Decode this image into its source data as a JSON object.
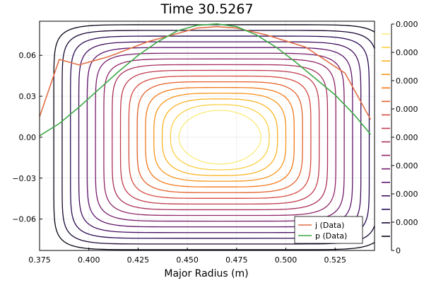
{
  "chart_data": {
    "type": "contour",
    "title": "Time 30.5267",
    "xlabel": "Major Radius (m)",
    "ylabel": "",
    "xlim": [
      0.375,
      0.545
    ],
    "ylim": [
      -0.083,
      0.085
    ],
    "x_ticks": [
      0.375,
      0.4,
      0.425,
      0.45,
      0.475,
      0.5,
      0.525
    ],
    "x_tick_labels": [
      "0.375",
      "0.400",
      "0.425",
      "0.450",
      "0.475",
      "0.500",
      "0.525"
    ],
    "y_ticks": [
      -0.06,
      -0.03,
      0.0,
      0.03,
      0.06
    ],
    "y_tick_labels": [
      "−0.06",
      "−0.03",
      "0.00",
      "0.03",
      "0.06"
    ],
    "grid": true,
    "legend_position": "bottom-right",
    "contours": {
      "center": [
        0.4665,
        0.0
      ],
      "count": 16,
      "colormap": [
        "#000004",
        "#280b54",
        "#65156e",
        "#9f2a63",
        "#d44842",
        "#f57d15",
        "#fac228",
        "#fcffa4"
      ]
    },
    "colorbar": {
      "tick_labels": [
        "0.000",
        "0.000",
        "0.000",
        "0.000",
        "0.000",
        "0.000",
        "0.000",
        "0.000",
        "0"
      ],
      "levels": 16
    },
    "series": [
      {
        "name": "j (Data)",
        "color": "#e26f46",
        "x": [
          0.375,
          0.385,
          0.395,
          0.41,
          0.43,
          0.445,
          0.455,
          0.465,
          0.475,
          0.49,
          0.51,
          0.53,
          0.543
        ],
        "y": [
          0.015,
          0.057,
          0.053,
          0.059,
          0.07,
          0.076,
          0.08,
          0.081,
          0.08,
          0.075,
          0.066,
          0.047,
          0.013
        ]
      },
      {
        "name": "p (Data)",
        "color": "#3ca846",
        "x": [
          0.375,
          0.385,
          0.395,
          0.405,
          0.415,
          0.425,
          0.435,
          0.445,
          0.455,
          0.465,
          0.475,
          0.485,
          0.495,
          0.505,
          0.515,
          0.525,
          0.535,
          0.543
        ],
        "y": [
          0.001,
          0.01,
          0.022,
          0.035,
          0.048,
          0.06,
          0.07,
          0.078,
          0.082,
          0.083,
          0.081,
          0.075,
          0.066,
          0.055,
          0.043,
          0.031,
          0.016,
          0.002
        ]
      }
    ]
  }
}
